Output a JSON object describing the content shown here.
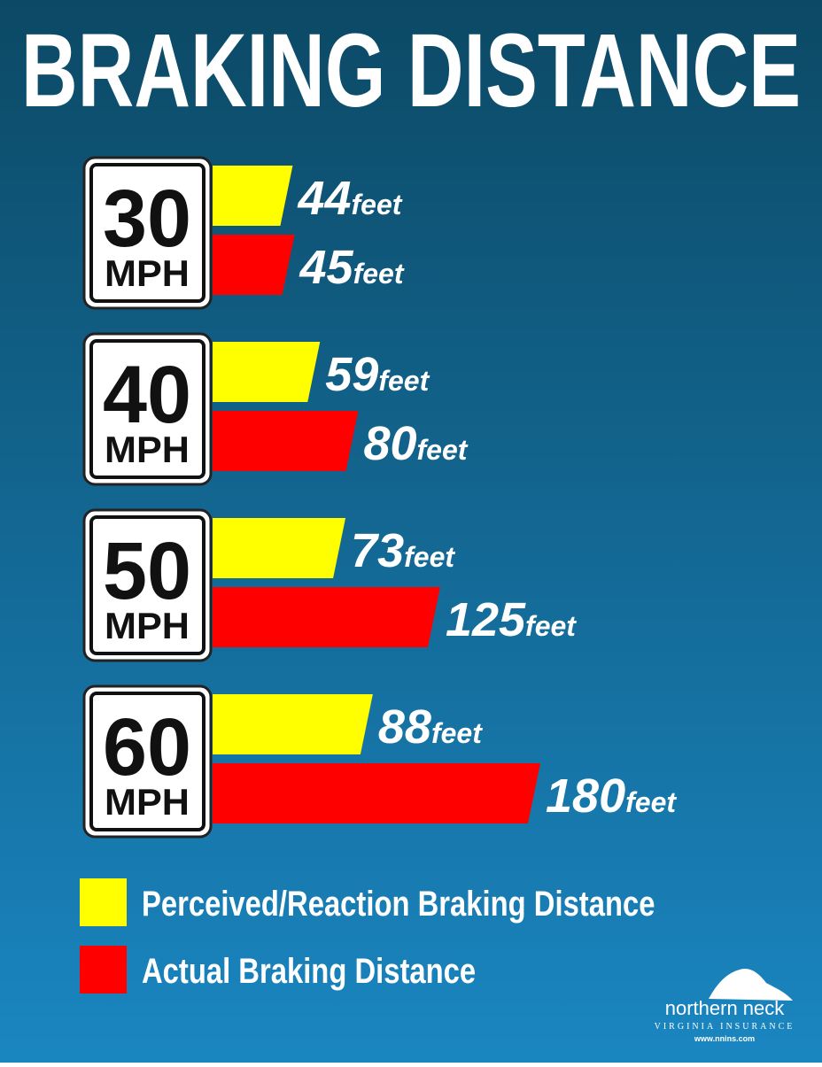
{
  "chart_data": {
    "type": "bar",
    "title": "BRAKING DISTANCE",
    "categories": [
      "30",
      "40",
      "50",
      "60"
    ],
    "category_unit": "MPH",
    "value_unit": "feet",
    "series": [
      {
        "name": "Perceived/Reaction Braking Distance",
        "color": "#ffff00",
        "values": [
          44,
          59,
          73,
          88
        ]
      },
      {
        "name": "Actual Braking Distance",
        "color": "#ff0000",
        "values": [
          45,
          80,
          125,
          180
        ]
      }
    ]
  },
  "footer": {
    "brand": "northern neck",
    "tagline": "VIRGINIA INSURANCE",
    "url": "www.nnins.com"
  }
}
